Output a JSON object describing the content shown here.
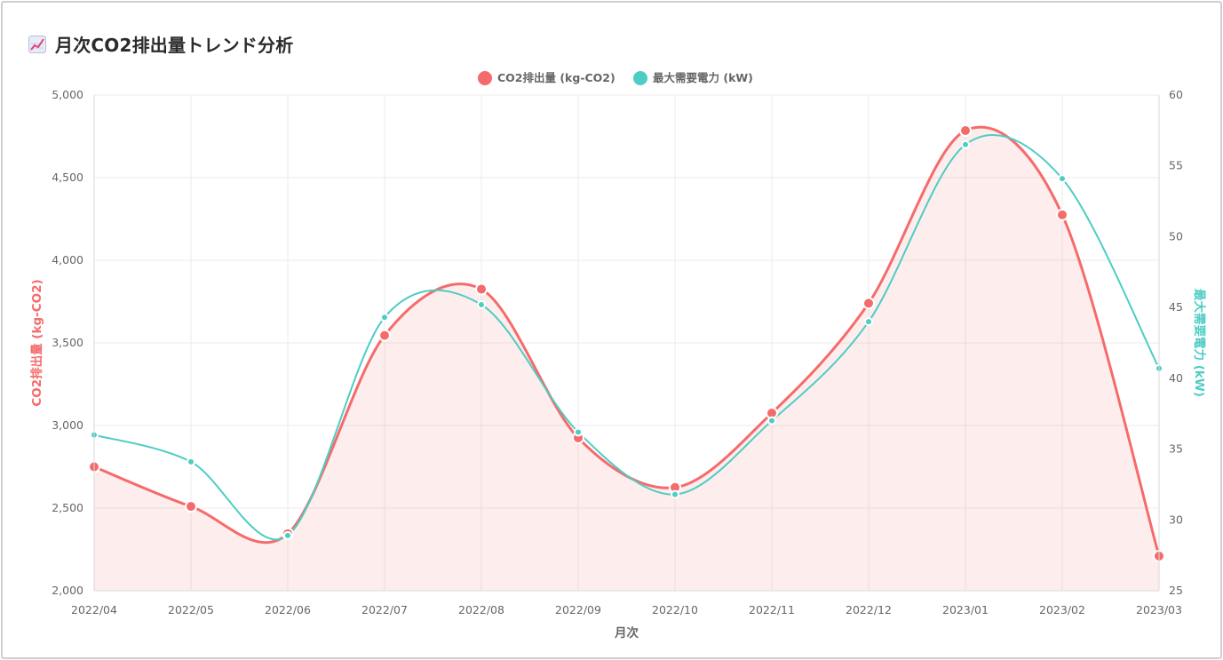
{
  "header": {
    "title": "月次CO2排出量トレンド分析",
    "icon": "chart-increasing-icon"
  },
  "colors": {
    "co2": "#f56b6b",
    "co2_fill": "rgba(245,107,107,0.12)",
    "demand": "#4ecdc4",
    "grid": "#ebebeb",
    "tick": "#666666"
  },
  "chart_data": {
    "type": "line",
    "title": "",
    "xlabel": "月次",
    "categories": [
      "2022/04",
      "2022/05",
      "2022/06",
      "2022/07",
      "2022/08",
      "2022/09",
      "2022/10",
      "2022/11",
      "2022/12",
      "2023/01",
      "2023/02",
      "2023/03"
    ],
    "y_left": {
      "label": "CO2排出量 (kg-CO2)",
      "range": [
        2000,
        5000
      ],
      "ticks": [
        "2,000",
        "2,500",
        "3,000",
        "3,500",
        "4,000",
        "4,500",
        "5,000"
      ]
    },
    "y_right": {
      "label": "最大需要電力 (kW)",
      "range": [
        25,
        60
      ],
      "ticks": [
        "25",
        "30",
        "35",
        "40",
        "45",
        "50",
        "55",
        "60"
      ]
    },
    "series": [
      {
        "name": "CO2排出量 (kg-CO2)",
        "axis": "left",
        "filled": true,
        "values": [
          2750,
          2510,
          2345,
          3545,
          3825,
          2925,
          2625,
          3075,
          3740,
          4785,
          4275,
          2210
        ]
      },
      {
        "name": "最大需要電力 (kW)",
        "axis": "right",
        "filled": false,
        "values": [
          36.0,
          34.1,
          28.9,
          44.3,
          45.2,
          36.2,
          31.8,
          37.0,
          44.0,
          56.5,
          54.1,
          40.7
        ]
      }
    ],
    "legend_position": "top-center",
    "grid": true
  }
}
